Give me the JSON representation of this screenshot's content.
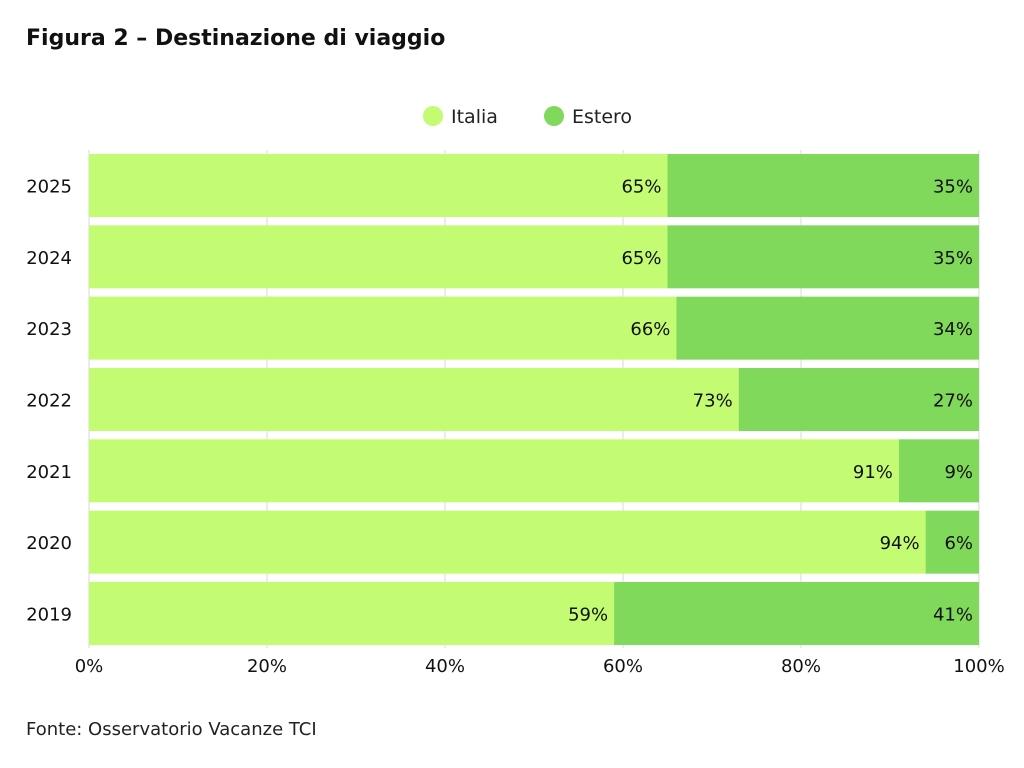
{
  "figure": {
    "title": "Figura 2 – Destinazione di viaggio",
    "source": "Fonte: Osservatorio Vacanze TCI"
  },
  "chart_data": {
    "type": "bar",
    "orientation": "horizontal",
    "stacked": true,
    "title": "Figura 2 – Destinazione di viaggio",
    "categories": [
      "2025",
      "2024",
      "2023",
      "2022",
      "2021",
      "2020",
      "2019"
    ],
    "series": [
      {
        "name": "Italia",
        "color": "#c3fc72",
        "values": [
          65,
          65,
          66,
          73,
          91,
          94,
          59
        ]
      },
      {
        "name": "Estero",
        "color": "#80d95a",
        "values": [
          35,
          35,
          34,
          27,
          9,
          6,
          41
        ]
      }
    ],
    "data_labels": {
      "Italia": [
        "65%",
        "65%",
        "66%",
        "73%",
        "91%",
        "94%",
        "59%"
      ],
      "Estero": [
        "35%",
        "35%",
        "34%",
        "27%",
        "9%",
        "6%",
        "41%"
      ]
    },
    "x_ticks": [
      "0%",
      "20%",
      "40%",
      "60%",
      "80%",
      "100%"
    ],
    "xlim": [
      0,
      100
    ],
    "xlabel": "",
    "ylabel": "",
    "grid": true,
    "legend_position": "top-center"
  }
}
